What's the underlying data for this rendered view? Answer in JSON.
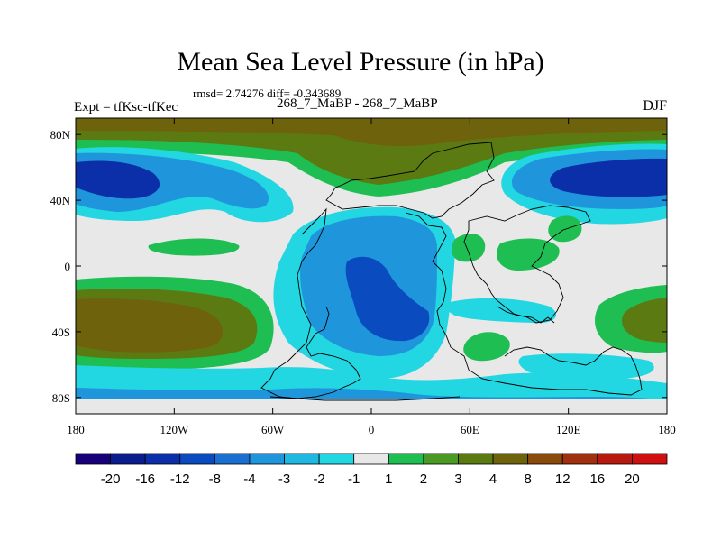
{
  "title": "Mean Sea Level Pressure (in hPa)",
  "stats_text": "rmsd= 2.74276 diff= -0.343689",
  "experiment_label": "Expt = tfKsc-tfKec",
  "subtitle": "268_7_MaBP - 268_7_MaBP",
  "season": "DJF",
  "map": {
    "lon_range": [
      -180,
      180
    ],
    "lat_range": [
      -90,
      90
    ],
    "x_ticks": [
      {
        "lon": -180,
        "label": "180"
      },
      {
        "lon": -120,
        "label": "120W"
      },
      {
        "lon": -60,
        "label": "60W"
      },
      {
        "lon": 0,
        "label": "0"
      },
      {
        "lon": 60,
        "label": "60E"
      },
      {
        "lon": 120,
        "label": "120E"
      },
      {
        "lon": 180,
        "label": "180"
      }
    ],
    "y_ticks": [
      {
        "lat": 80,
        "label": "80N"
      },
      {
        "lat": 40,
        "label": "40N"
      },
      {
        "lat": 0,
        "label": "0"
      },
      {
        "lat": -40,
        "label": "40S"
      },
      {
        "lat": -80,
        "label": "80S"
      }
    ]
  },
  "colorbar": {
    "colors": [
      "#18007a",
      "#0b1c8f",
      "#0b2fa8",
      "#0a4bbf",
      "#1a6fd1",
      "#1f96dc",
      "#1fb8e0",
      "#22d6e2",
      "#e8e8e8",
      "#1fbe52",
      "#4a9a23",
      "#5c7a12",
      "#6e620c",
      "#8a4a0c",
      "#a1300f",
      "#b81a10",
      "#cf0f10"
    ],
    "labels": [
      "-20",
      "-16",
      "-12",
      "-8",
      "-4",
      "-3",
      "-2",
      "-1",
      "1",
      "2",
      "3",
      "4",
      "8",
      "12",
      "16",
      "20"
    ]
  }
}
